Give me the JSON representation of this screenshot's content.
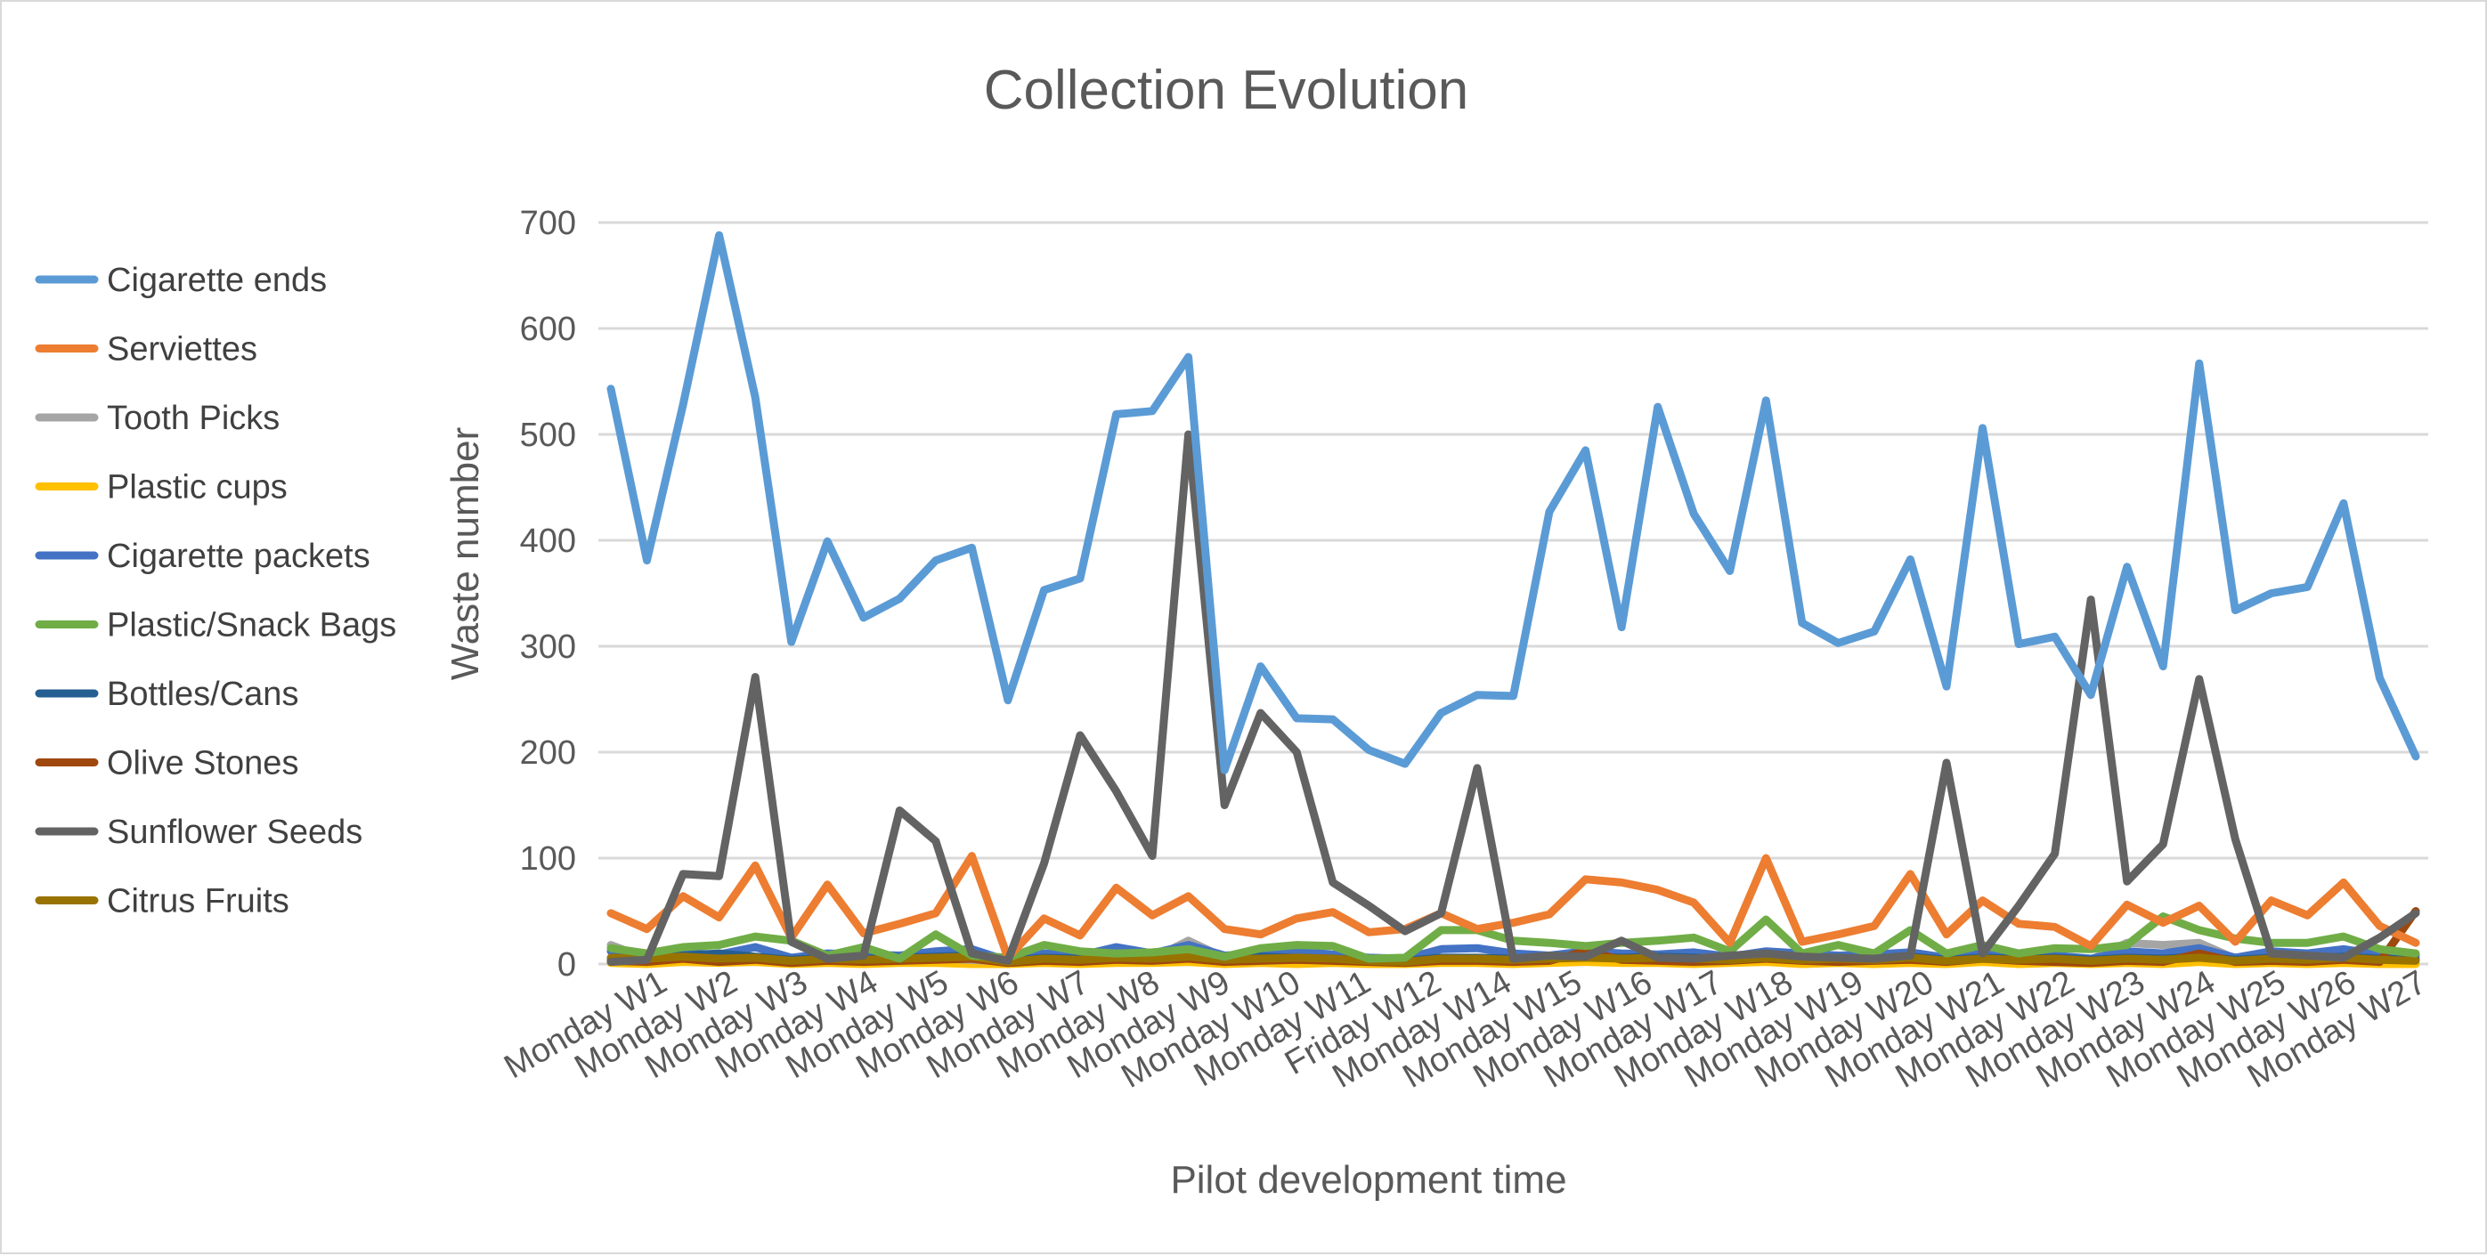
{
  "chart_data": {
    "type": "line",
    "title": "Collection Evolution",
    "xlabel": "Pilot development time",
    "ylabel": "Waste number",
    "ylim": [
      0,
      700
    ],
    "yticks": [
      0,
      100,
      200,
      300,
      400,
      500,
      600,
      700
    ],
    "grid": true,
    "legend_position": "left",
    "x_tick_labels": [
      "Monday W1",
      "Monday W2",
      "Monday W3",
      "Monday W4",
      "Monday W5",
      "Monday W6",
      "Monday W7",
      "Monday W8",
      "Monday W9",
      "Monday W10",
      "Monday W11",
      "Friday W12",
      "Monday W14",
      "Monday W15",
      "Monday W16",
      "Monday W17",
      "Monday W18",
      "Monday W19",
      "Monday W20",
      "Monday W21",
      "Monday W22",
      "Monday W23",
      "Monday W24",
      "Monday W25",
      "Monday W26",
      "Monday W27"
    ],
    "series": [
      {
        "name": "Cigarette ends",
        "color": "#5b9bd5",
        "values": [
          543,
          381,
          528,
          688,
          535,
          304,
          399,
          327,
          345,
          381,
          393,
          249,
          353,
          364,
          519,
          522,
          573,
          183,
          281,
          232,
          231,
          202,
          189,
          237,
          254,
          253,
          427,
          485,
          318,
          526,
          425,
          371,
          532,
          322,
          303,
          314,
          382,
          262,
          506,
          302,
          309,
          254,
          375,
          281,
          567,
          334,
          350,
          356,
          435,
          270,
          196
        ]
      },
      {
        "name": "Serviettes",
        "color": "#ed7d31",
        "values": [
          48,
          33,
          64,
          44,
          93,
          25,
          75,
          29,
          38,
          48,
          102,
          6,
          43,
          27,
          72,
          46,
          64,
          33,
          28,
          43,
          49,
          30,
          33,
          48,
          33,
          39,
          47,
          80,
          77,
          70,
          58,
          20,
          100,
          21,
          28,
          36,
          85,
          28,
          60,
          38,
          35,
          17,
          56,
          39,
          55,
          21,
          60,
          46,
          77,
          36,
          20
        ]
      },
      {
        "name": "Tooth Picks",
        "color": "#a5a5a5",
        "values": [
          18,
          5,
          8,
          6,
          5,
          4,
          6,
          3,
          4,
          5,
          4,
          2,
          5,
          4,
          6,
          5,
          22,
          6,
          5,
          6,
          4,
          5,
          4,
          6,
          5,
          6,
          5,
          7,
          6,
          8,
          7,
          6,
          8,
          6,
          5,
          6,
          7,
          5,
          8,
          6,
          5,
          4,
          20,
          18,
          20,
          5,
          7,
          6,
          8,
          6,
          5
        ]
      },
      {
        "name": "Plastic cups",
        "color": "#ffc000",
        "values": [
          1,
          0,
          2,
          1,
          2,
          0,
          1,
          0,
          1,
          1,
          0,
          0,
          1,
          0,
          1,
          1,
          2,
          0,
          1,
          0,
          1,
          0,
          0,
          1,
          1,
          0,
          1,
          2,
          1,
          1,
          0,
          1,
          2,
          0,
          1,
          0,
          1,
          0,
          2,
          0,
          1,
          0,
          1,
          0,
          2,
          0,
          1,
          0,
          1,
          0,
          0
        ]
      },
      {
        "name": "Cigarette packets",
        "color": "#4472c4",
        "values": [
          12,
          8,
          10,
          9,
          16,
          6,
          10,
          9,
          8,
          12,
          14,
          3,
          10,
          8,
          16,
          10,
          18,
          8,
          10,
          12,
          9,
          6,
          5,
          14,
          15,
          10,
          8,
          12,
          10,
          9,
          11,
          7,
          12,
          10,
          8,
          9,
          11,
          6,
          13,
          9,
          8,
          5,
          12,
          10,
          15,
          6,
          12,
          10,
          14,
          9,
          8
        ]
      },
      {
        "name": "Plastic/Snack Bags",
        "color": "#70ad47",
        "values": [
          15,
          10,
          16,
          18,
          26,
          22,
          8,
          16,
          5,
          28,
          8,
          6,
          18,
          12,
          10,
          11,
          14,
          7,
          15,
          18,
          17,
          5,
          6,
          32,
          32,
          22,
          20,
          17,
          20,
          22,
          25,
          12,
          42,
          10,
          18,
          10,
          32,
          10,
          18,
          10,
          15,
          14,
          18,
          45,
          32,
          24,
          20,
          20,
          26,
          14,
          10
        ]
      },
      {
        "name": "Bottles/Cans",
        "color": "#255e91",
        "values": [
          5,
          6,
          8,
          10,
          7,
          4,
          6,
          5,
          6,
          7,
          8,
          3,
          6,
          5,
          7,
          6,
          8,
          5,
          7,
          6,
          5,
          4,
          3,
          6,
          6,
          5,
          6,
          7,
          6,
          7,
          6,
          5,
          7,
          5,
          6,
          5,
          7,
          4,
          6,
          5,
          6,
          4,
          6,
          5,
          7,
          4,
          6,
          5,
          7,
          5,
          4
        ]
      },
      {
        "name": "Olive Stones",
        "color": "#9e480e",
        "values": [
          3,
          2,
          5,
          2,
          4,
          1,
          3,
          2,
          3,
          4,
          5,
          1,
          3,
          2,
          4,
          3,
          5,
          2,
          3,
          4,
          3,
          2,
          1,
          3,
          3,
          2,
          3,
          12,
          4,
          3,
          2,
          3,
          5,
          3,
          2,
          3,
          4,
          2,
          5,
          3,
          2,
          1,
          3,
          2,
          10,
          2,
          3,
          2,
          4,
          2,
          50
        ]
      },
      {
        "name": "Sunflower Seeds",
        "color": "#636363",
        "values": [
          2,
          4,
          85,
          83,
          271,
          21,
          5,
          8,
          145,
          116,
          10,
          3,
          95,
          216,
          163,
          102,
          500,
          150,
          237,
          200,
          77,
          55,
          31,
          48,
          185,
          5,
          8,
          7,
          22,
          6,
          5,
          8,
          10,
          7,
          6,
          5,
          8,
          190,
          10,
          55,
          104,
          344,
          78,
          113,
          269,
          118,
          10,
          8,
          6,
          25,
          48
        ]
      },
      {
        "name": "Citrus Fruits",
        "color": "#997300",
        "values": [
          6,
          5,
          7,
          5,
          6,
          3,
          5,
          4,
          5,
          6,
          7,
          2,
          5,
          4,
          6,
          5,
          7,
          4,
          5,
          6,
          5,
          3,
          2,
          5,
          5,
          4,
          5,
          6,
          5,
          6,
          5,
          4,
          6,
          4,
          5,
          4,
          6,
          3,
          5,
          4,
          5,
          3,
          5,
          4,
          6,
          3,
          5,
          4,
          6,
          4,
          3
        ]
      }
    ]
  }
}
